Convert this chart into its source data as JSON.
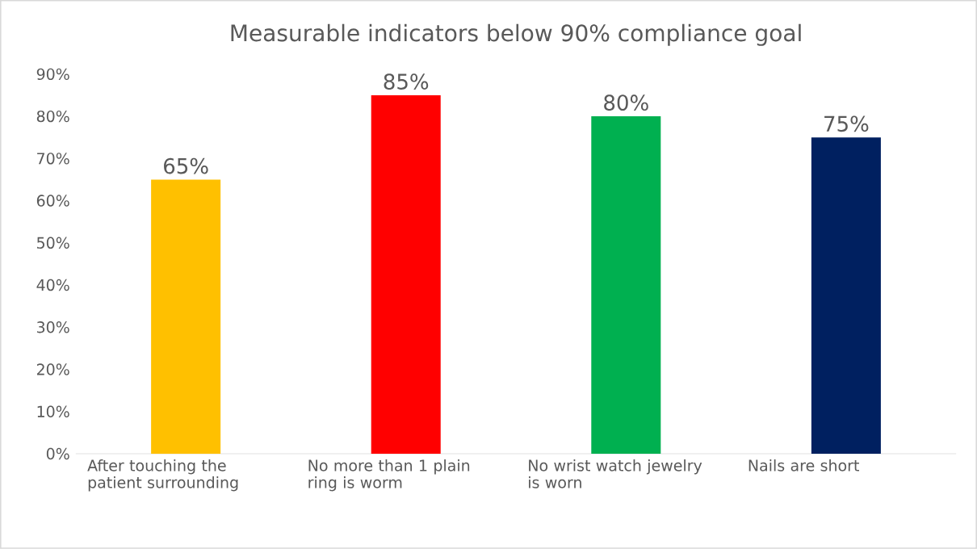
{
  "chart_data": {
    "type": "bar",
    "title": "Measurable indicators below 90% compliance goal",
    "categories": [
      "After touching the patient surrounding",
      "No more than 1 plain ring is worm",
      "No wrist watch jewelry is worn",
      "Nails are short"
    ],
    "values": [
      65,
      85,
      80,
      75
    ],
    "colors": [
      "#ffc000",
      "#ff0000",
      "#00b050",
      "#002060"
    ],
    "value_labels": [
      "65%",
      "85%",
      "80%",
      "75%"
    ],
    "ylim": [
      0,
      90
    ],
    "yticks": [
      {
        "value": 0,
        "label": "0%"
      },
      {
        "value": 10,
        "label": "10%"
      },
      {
        "value": 20,
        "label": "20%"
      },
      {
        "value": 30,
        "label": "30%"
      },
      {
        "value": 40,
        "label": "40%"
      },
      {
        "value": 50,
        "label": "50%"
      },
      {
        "value": 60,
        "label": "60%"
      },
      {
        "value": 70,
        "label": "70%"
      },
      {
        "value": 80,
        "label": "80%"
      },
      {
        "value": 90,
        "label": "90%"
      }
    ],
    "grid": false
  }
}
